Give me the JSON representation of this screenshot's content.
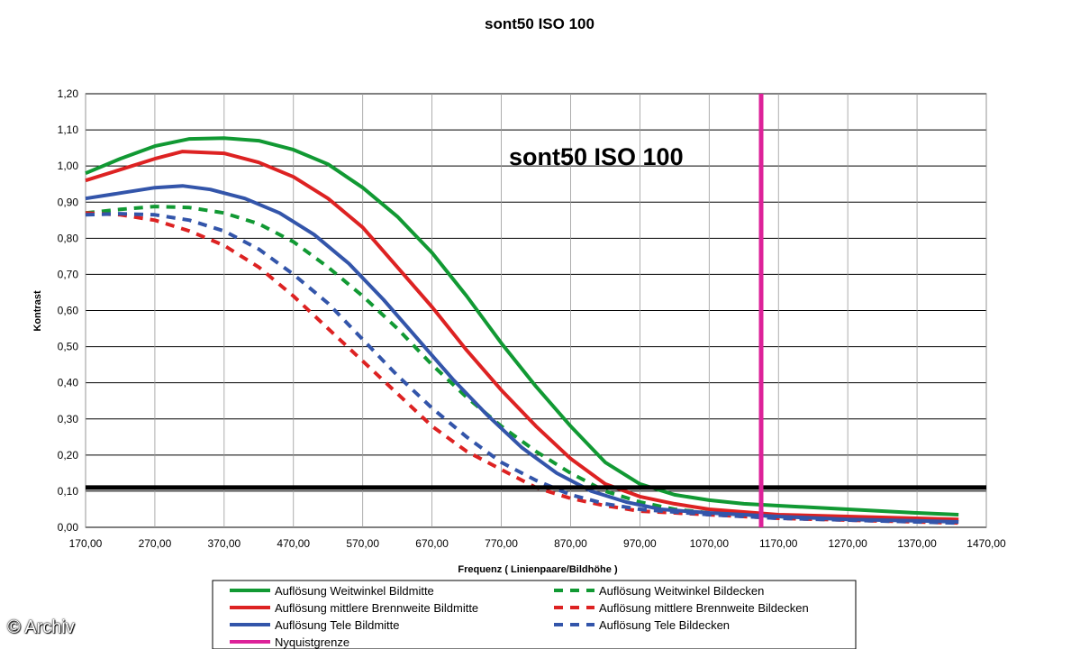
{
  "chart_data": {
    "type": "line",
    "title": "sont50 ISO 100",
    "annotation": "sont50 ISO 100",
    "xlabel": "Frequenz ( Linienpaare/Bildhöhe )",
    "ylabel": "Kontrast",
    "xlim": [
      170,
      1470
    ],
    "ylim": [
      0,
      1.2
    ],
    "x_ticks": [
      "170,00",
      "270,00",
      "370,00",
      "470,00",
      "570,00",
      "670,00",
      "770,00",
      "870,00",
      "970,00",
      "1070,00",
      "1170,00",
      "1270,00",
      "1370,00",
      "1470,00"
    ],
    "y_ticks": [
      "0,00",
      "0,10",
      "0,20",
      "0,30",
      "0,40",
      "0,50",
      "0,60",
      "0,70",
      "0,80",
      "0,90",
      "1,00",
      "1,10",
      "1,20"
    ],
    "grid": true,
    "threshold": 0.11,
    "nyquist": 1145,
    "legend_position": "bottom",
    "series": [
      {
        "name": "Auflösung Weitwinkel Bildmitte",
        "color": "#119933",
        "dash": false,
        "points": [
          [
            170,
            0.98
          ],
          [
            220,
            1.02
          ],
          [
            270,
            1.055
          ],
          [
            320,
            1.075
          ],
          [
            370,
            1.077
          ],
          [
            420,
            1.07
          ],
          [
            470,
            1.045
          ],
          [
            520,
            1.005
          ],
          [
            570,
            0.94
          ],
          [
            620,
            0.86
          ],
          [
            670,
            0.76
          ],
          [
            720,
            0.64
          ],
          [
            770,
            0.51
          ],
          [
            820,
            0.39
          ],
          [
            870,
            0.28
          ],
          [
            920,
            0.18
          ],
          [
            970,
            0.12
          ],
          [
            1020,
            0.09
          ],
          [
            1070,
            0.075
          ],
          [
            1120,
            0.065
          ],
          [
            1170,
            0.06
          ],
          [
            1270,
            0.05
          ],
          [
            1370,
            0.04
          ],
          [
            1430,
            0.035
          ]
        ]
      },
      {
        "name": "Auflösung Weitwinkel Bildecken",
        "color": "#119933",
        "dash": true,
        "points": [
          [
            170,
            0.87
          ],
          [
            220,
            0.88
          ],
          [
            270,
            0.888
          ],
          [
            320,
            0.885
          ],
          [
            370,
            0.87
          ],
          [
            420,
            0.84
          ],
          [
            470,
            0.79
          ],
          [
            520,
            0.72
          ],
          [
            570,
            0.64
          ],
          [
            620,
            0.55
          ],
          [
            670,
            0.45
          ],
          [
            720,
            0.36
          ],
          [
            770,
            0.28
          ],
          [
            820,
            0.21
          ],
          [
            870,
            0.15
          ],
          [
            920,
            0.1
          ],
          [
            970,
            0.07
          ],
          [
            1020,
            0.05
          ],
          [
            1070,
            0.04
          ],
          [
            1170,
            0.03
          ],
          [
            1270,
            0.025
          ],
          [
            1370,
            0.02
          ],
          [
            1430,
            0.015
          ]
        ]
      },
      {
        "name": "Auflösung mittlere Brennweite Bildmitte",
        "color": "#dd2222",
        "dash": false,
        "points": [
          [
            170,
            0.96
          ],
          [
            220,
            0.99
          ],
          [
            270,
            1.02
          ],
          [
            310,
            1.04
          ],
          [
            370,
            1.035
          ],
          [
            420,
            1.01
          ],
          [
            470,
            0.97
          ],
          [
            520,
            0.91
          ],
          [
            570,
            0.83
          ],
          [
            620,
            0.72
          ],
          [
            670,
            0.61
          ],
          [
            720,
            0.49
          ],
          [
            770,
            0.38
          ],
          [
            820,
            0.28
          ],
          [
            870,
            0.19
          ],
          [
            920,
            0.12
          ],
          [
            970,
            0.085
          ],
          [
            1020,
            0.065
          ],
          [
            1070,
            0.05
          ],
          [
            1170,
            0.035
          ],
          [
            1270,
            0.03
          ],
          [
            1370,
            0.025
          ],
          [
            1430,
            0.022
          ]
        ]
      },
      {
        "name": "Auflösung mittlere Brennweite Bildecken",
        "color": "#dd2222",
        "dash": true,
        "points": [
          [
            170,
            0.87
          ],
          [
            220,
            0.865
          ],
          [
            270,
            0.85
          ],
          [
            320,
            0.82
          ],
          [
            370,
            0.78
          ],
          [
            420,
            0.72
          ],
          [
            470,
            0.64
          ],
          [
            520,
            0.55
          ],
          [
            570,
            0.46
          ],
          [
            620,
            0.37
          ],
          [
            670,
            0.28
          ],
          [
            720,
            0.21
          ],
          [
            770,
            0.16
          ],
          [
            820,
            0.11
          ],
          [
            870,
            0.08
          ],
          [
            920,
            0.06
          ],
          [
            970,
            0.045
          ],
          [
            1070,
            0.035
          ],
          [
            1170,
            0.025
          ],
          [
            1270,
            0.02
          ],
          [
            1370,
            0.015
          ],
          [
            1430,
            0.012
          ]
        ]
      },
      {
        "name": "Auflösung Tele Bildmitte",
        "color": "#3355aa",
        "dash": false,
        "points": [
          [
            170,
            0.91
          ],
          [
            220,
            0.925
          ],
          [
            270,
            0.94
          ],
          [
            310,
            0.945
          ],
          [
            350,
            0.935
          ],
          [
            400,
            0.91
          ],
          [
            450,
            0.87
          ],
          [
            500,
            0.81
          ],
          [
            550,
            0.73
          ],
          [
            600,
            0.63
          ],
          [
            650,
            0.52
          ],
          [
            700,
            0.41
          ],
          [
            750,
            0.31
          ],
          [
            800,
            0.22
          ],
          [
            850,
            0.15
          ],
          [
            900,
            0.1
          ],
          [
            950,
            0.07
          ],
          [
            1000,
            0.05
          ],
          [
            1070,
            0.04
          ],
          [
            1170,
            0.03
          ],
          [
            1270,
            0.022
          ],
          [
            1370,
            0.018
          ],
          [
            1430,
            0.015
          ]
        ]
      },
      {
        "name": "Auflösung Tele Bildecken",
        "color": "#3355aa",
        "dash": true,
        "points": [
          [
            170,
            0.865
          ],
          [
            220,
            0.868
          ],
          [
            270,
            0.865
          ],
          [
            320,
            0.85
          ],
          [
            370,
            0.82
          ],
          [
            420,
            0.77
          ],
          [
            470,
            0.7
          ],
          [
            520,
            0.62
          ],
          [
            570,
            0.52
          ],
          [
            620,
            0.42
          ],
          [
            670,
            0.33
          ],
          [
            720,
            0.25
          ],
          [
            770,
            0.18
          ],
          [
            820,
            0.13
          ],
          [
            870,
            0.09
          ],
          [
            920,
            0.065
          ],
          [
            970,
            0.05
          ],
          [
            1070,
            0.035
          ],
          [
            1170,
            0.025
          ],
          [
            1270,
            0.02
          ],
          [
            1370,
            0.015
          ],
          [
            1430,
            0.012
          ]
        ]
      },
      {
        "name": "Nyquistgrenze",
        "color": "#dd2299",
        "dash": false,
        "points": []
      }
    ]
  },
  "credit": "© Archiv"
}
